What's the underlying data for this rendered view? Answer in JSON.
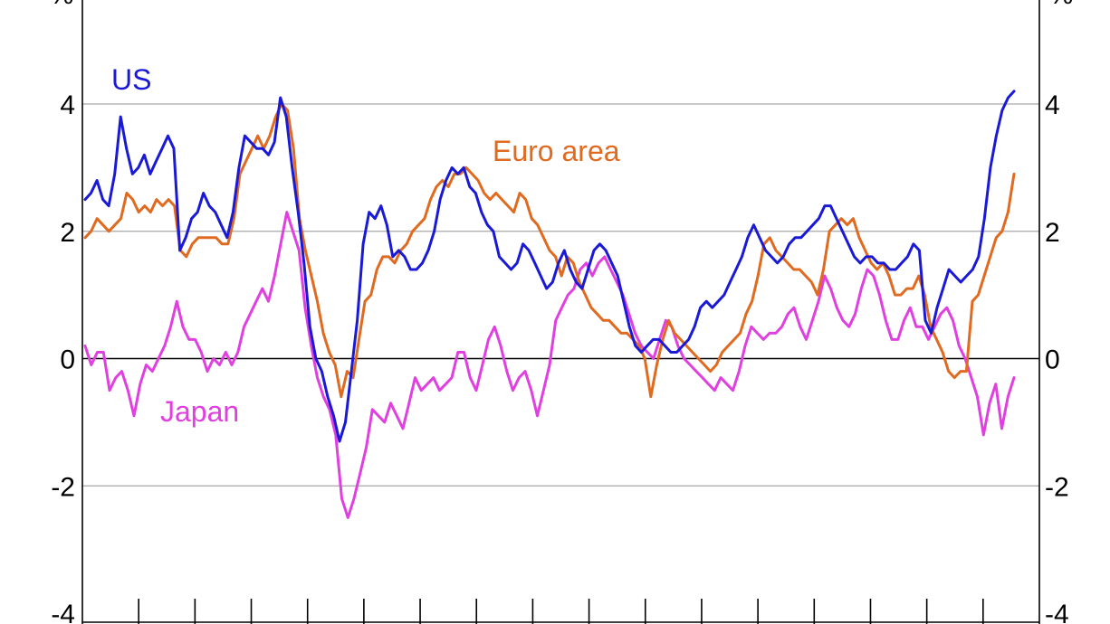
{
  "chart_data": {
    "type": "line",
    "title": "",
    "xlabel": "",
    "ylabel_left": "%",
    "ylabel_right": "%",
    "ylim": [
      -4,
      4
    ],
    "yticks": [
      -4,
      -2,
      0,
      2,
      4
    ],
    "grid": true,
    "legend": "inline labels",
    "series": [
      {
        "name": "US",
        "color": "#1a1ad6",
        "label_color": "#1a1ad6",
        "values": [
          2.5,
          2.6,
          2.8,
          2.5,
          2.4,
          2.9,
          3.8,
          3.3,
          2.9,
          3.0,
          3.2,
          2.9,
          3.1,
          3.3,
          3.5,
          3.3,
          1.7,
          1.9,
          2.2,
          2.3,
          2.6,
          2.4,
          2.3,
          2.1,
          1.9,
          2.3,
          3.0,
          3.5,
          3.4,
          3.3,
          3.3,
          3.2,
          3.4,
          4.1,
          3.8,
          3.0,
          2.3,
          1.5,
          0.5,
          0.0,
          -0.2,
          -0.6,
          -0.9,
          -1.3,
          -1.0,
          -0.2,
          0.6,
          1.8,
          2.3,
          2.2,
          2.4,
          2.1,
          1.6,
          1.7,
          1.6,
          1.4,
          1.4,
          1.5,
          1.7,
          2.0,
          2.5,
          2.8,
          3.0,
          2.9,
          3.0,
          2.7,
          2.6,
          2.3,
          2.1,
          2.0,
          1.6,
          1.5,
          1.4,
          1.5,
          1.8,
          1.7,
          1.5,
          1.3,
          1.1,
          1.2,
          1.5,
          1.7,
          1.4,
          1.2,
          1.1,
          1.4,
          1.7,
          1.8,
          1.7,
          1.5,
          1.3,
          0.9,
          0.5,
          0.2,
          0.1,
          0.2,
          0.3,
          0.3,
          0.2,
          0.1,
          0.1,
          0.2,
          0.3,
          0.5,
          0.8,
          0.9,
          0.8,
          0.9,
          1.0,
          1.2,
          1.4,
          1.6,
          1.9,
          2.1,
          1.9,
          1.7,
          1.6,
          1.5,
          1.6,
          1.8,
          1.9,
          1.9,
          2.0,
          2.1,
          2.2,
          2.4,
          2.4,
          2.2,
          2.0,
          1.8,
          1.6,
          1.5,
          1.6,
          1.6,
          1.5,
          1.5,
          1.4,
          1.4,
          1.5,
          1.6,
          1.8,
          1.7,
          0.6,
          0.4,
          0.8,
          1.1,
          1.4,
          1.3,
          1.2,
          1.3,
          1.4,
          1.6,
          2.2,
          3.0,
          3.5,
          3.9,
          4.1,
          4.2
        ]
      },
      {
        "name": "Euro area",
        "color": "#e06a20",
        "label_color": "#e06a20",
        "values": [
          1.9,
          2.0,
          2.2,
          2.1,
          2.0,
          2.1,
          2.2,
          2.6,
          2.5,
          2.3,
          2.4,
          2.3,
          2.5,
          2.4,
          2.5,
          2.4,
          1.7,
          1.6,
          1.8,
          1.9,
          1.9,
          1.9,
          1.9,
          1.8,
          1.8,
          2.2,
          2.9,
          3.1,
          3.3,
          3.5,
          3.3,
          3.5,
          3.8,
          4.0,
          3.9,
          3.3,
          2.2,
          1.7,
          1.3,
          0.9,
          0.4,
          0.1,
          -0.1,
          -0.6,
          -0.2,
          -0.3,
          0.3,
          0.9,
          1.0,
          1.4,
          1.6,
          1.6,
          1.5,
          1.7,
          1.8,
          2.0,
          2.1,
          2.2,
          2.5,
          2.7,
          2.8,
          2.7,
          2.9,
          2.9,
          3.0,
          2.9,
          2.8,
          2.6,
          2.5,
          2.6,
          2.5,
          2.4,
          2.3,
          2.6,
          2.5,
          2.2,
          2.1,
          1.9,
          1.7,
          1.6,
          1.3,
          1.6,
          1.5,
          1.2,
          1.0,
          0.8,
          0.7,
          0.6,
          0.6,
          0.5,
          0.4,
          0.4,
          0.3,
          0.2,
          0.0,
          -0.6,
          -0.1,
          0.3,
          0.6,
          0.4,
          0.3,
          0.2,
          0.1,
          0.0,
          -0.1,
          -0.2,
          -0.1,
          0.1,
          0.2,
          0.3,
          0.4,
          0.7,
          0.9,
          1.3,
          1.8,
          1.9,
          1.7,
          1.6,
          1.5,
          1.4,
          1.4,
          1.3,
          1.2,
          1.0,
          1.4,
          2.0,
          2.1,
          2.2,
          2.1,
          2.2,
          1.9,
          1.7,
          1.5,
          1.4,
          1.5,
          1.3,
          1.0,
          1.0,
          1.1,
          1.1,
          1.3,
          1.0,
          0.5,
          0.3,
          0.1,
          -0.2,
          -0.3,
          -0.2,
          -0.2,
          0.9,
          1.0,
          1.3,
          1.6,
          1.9,
          2.0,
          2.3,
          2.9
        ]
      },
      {
        "name": "Japan",
        "color": "#e040e0",
        "label_color": "#e040e0",
        "values": [
          0.2,
          -0.1,
          0.1,
          0.1,
          -0.5,
          -0.3,
          -0.2,
          -0.5,
          -0.9,
          -0.4,
          -0.1,
          -0.2,
          0.0,
          0.2,
          0.5,
          0.9,
          0.5,
          0.3,
          0.3,
          0.1,
          -0.2,
          0.0,
          -0.1,
          0.1,
          -0.1,
          0.1,
          0.5,
          0.7,
          0.9,
          1.1,
          0.9,
          1.3,
          1.8,
          2.3,
          2.0,
          1.7,
          0.8,
          0.2,
          -0.3,
          -0.6,
          -0.8,
          -1.2,
          -2.2,
          -2.5,
          -2.2,
          -1.8,
          -1.4,
          -0.8,
          -0.9,
          -1.0,
          -0.7,
          -0.9,
          -1.1,
          -0.7,
          -0.3,
          -0.5,
          -0.4,
          -0.3,
          -0.5,
          -0.4,
          -0.3,
          0.1,
          0.1,
          -0.3,
          -0.5,
          -0.1,
          0.3,
          0.5,
          0.2,
          -0.2,
          -0.5,
          -0.3,
          -0.2,
          -0.5,
          -0.9,
          -0.5,
          -0.1,
          0.6,
          0.8,
          1.0,
          1.1,
          1.4,
          1.5,
          1.3,
          1.5,
          1.6,
          1.4,
          1.2,
          1.0,
          0.7,
          0.4,
          0.2,
          0.1,
          0.0,
          0.3,
          0.6,
          0.5,
          0.2,
          0.0,
          -0.1,
          -0.2,
          -0.3,
          -0.4,
          -0.5,
          -0.3,
          -0.4,
          -0.5,
          -0.2,
          0.2,
          0.5,
          0.4,
          0.3,
          0.4,
          0.4,
          0.5,
          0.7,
          0.8,
          0.5,
          0.3,
          0.6,
          0.9,
          1.3,
          1.1,
          0.8,
          0.6,
          0.5,
          0.7,
          1.1,
          1.4,
          1.3,
          1.0,
          0.6,
          0.3,
          0.3,
          0.6,
          0.8,
          0.5,
          0.5,
          0.3,
          0.5,
          0.7,
          0.8,
          0.6,
          0.2,
          0.0,
          -0.3,
          -0.6,
          -1.2,
          -0.7,
          -0.4,
          -1.1,
          -0.6,
          -0.3
        ]
      }
    ],
    "labels": {
      "us": "US",
      "euro": "Euro area",
      "japan": "Japan",
      "unit_left": "%",
      "unit_right": "%"
    }
  }
}
